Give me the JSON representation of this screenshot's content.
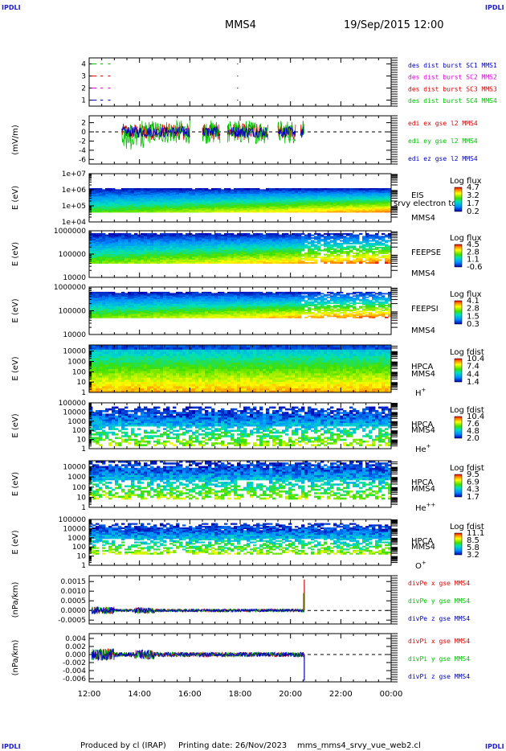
{
  "header": {
    "logo_left_top": "IPDLI",
    "logo_right_top": "IPDLI",
    "logo_left_bottom": "IPDLI",
    "logo_right_bottom": "IPDLI",
    "spacecraft": "MMS4",
    "date_time": "19/Sep/2015 12:00"
  },
  "footer": {
    "produced_by": "Produced by cl (IRAP)",
    "printing_date": "Printing date: 26/Nov/2023",
    "file": "mms_mms4_srvy_vue_web2.cl"
  },
  "colors": {
    "red": "#e00000",
    "green": "#00c000",
    "blue": "#0000c0",
    "magenta": "#e000e0"
  },
  "chart_data": {
    "type": "multi-panel time series and spectrograms",
    "x_ticks": [
      "12:00",
      "14:00",
      "16:00",
      "18:00",
      "20:00",
      "22:00",
      "00:00"
    ],
    "x_range_hours": [
      12,
      24
    ],
    "panels": [
      {
        "id": "burst",
        "type": "line",
        "ylabel": "",
        "yticks": [
          "4",
          "3",
          "2",
          "1"
        ],
        "ylim": [
          0.5,
          4.5
        ],
        "legend": [
          {
            "label": "des dist burst SC1 MMS1",
            "color": "#0000c0"
          },
          {
            "label": "des dist burst SC2 MMS2",
            "color": "#e000e0"
          },
          {
            "label": "des dist burst SC3 MMS3",
            "color": "#e00000"
          },
          {
            "label": "des dist burst SC4 MMS4",
            "color": "#00c000"
          }
        ],
        "series": [
          {
            "level": 4,
            "color": "#00c000",
            "segments": [
              [
                12.1,
                12.3
              ],
              [
                12.45,
                12.55
              ],
              [
                12.75,
                12.85
              ]
            ]
          },
          {
            "level": 3,
            "color": "#e00000",
            "segments": [
              [
                12.1,
                12.3
              ],
              [
                12.45,
                12.55
              ],
              [
                12.75,
                12.85
              ]
            ]
          },
          {
            "level": 2,
            "color": "#e000e0",
            "segments": [
              [
                12.1,
                12.3
              ],
              [
                12.45,
                12.55
              ],
              [
                12.75,
                12.85
              ]
            ]
          },
          {
            "level": 1,
            "color": "#0000c0",
            "segments": [
              [
                12.1,
                12.3
              ],
              [
                12.45,
                12.55
              ],
              [
                12.75,
                12.85
              ]
            ]
          }
        ],
        "dots_at_hour": 17.9
      },
      {
        "id": "edi",
        "type": "line",
        "ylabel": "(mV/m)",
        "yticks": [
          "2",
          "0",
          "-2",
          "-4",
          "-6"
        ],
        "ylim": [
          -7,
          3.5
        ],
        "legend": [
          {
            "label": "edi ex gse l2 MMS4",
            "color": "#e00000"
          },
          {
            "label": "edi ey gse l2 MMS4",
            "color": "#00c000"
          },
          {
            "label": "edi ez gse l2 MMS4",
            "color": "#0000c0"
          }
        ],
        "active_intervals": [
          [
            13.3,
            16.0
          ],
          [
            16.5,
            17.2
          ],
          [
            17.5,
            19.1
          ],
          [
            19.5,
            20.2
          ],
          [
            20.4,
            20.55
          ]
        ]
      },
      {
        "id": "eis",
        "type": "heatmap",
        "ylabel": "E (eV)",
        "yticks": [
          "1e+07",
          "1e+06",
          "1e+05",
          "1e+04"
        ],
        "ylim_log10": [
          4,
          7
        ],
        "band_log10": [
          4.6,
          6.1
        ],
        "labels": [
          "EIS",
          "srvy electron to",
          "MMS4"
        ],
        "colorbar": {
          "title": "Log flux",
          "ticks": [
            "4.7",
            "3.2",
            "1.7",
            "0.2"
          ],
          "range": [
            0.2,
            4.7
          ]
        }
      },
      {
        "id": "feepse",
        "type": "heatmap",
        "ylabel": "E (eV)",
        "yticks": [
          "1000000",
          "100000",
          "10000"
        ],
        "ylim_log10": [
          4,
          6
        ],
        "band_log10": [
          4.6,
          5.9
        ],
        "labels": [
          "FEEPSE",
          "MMS4"
        ],
        "colorbar": {
          "title": "Log flux",
          "ticks": [
            "4.5",
            "2.8",
            "1.1",
            "-0.6"
          ],
          "range": [
            -0.6,
            4.5
          ]
        }
      },
      {
        "id": "feepsi",
        "type": "heatmap",
        "ylabel": "E (eV)",
        "yticks": [
          "1000000",
          "100000",
          "10000"
        ],
        "ylim_log10": [
          4,
          6
        ],
        "band_log10": [
          4.7,
          5.8
        ],
        "labels": [
          "FEEPSI",
          "MMS4"
        ],
        "colorbar": {
          "title": "Log flux",
          "ticks": [
            "4.1",
            "2.8",
            "1.5",
            "0.3"
          ],
          "range": [
            0.3,
            4.1
          ]
        }
      },
      {
        "id": "hpca_h",
        "type": "heatmap",
        "ylabel": "E (eV)",
        "yticks": [
          "10000",
          "1000",
          "100",
          "10",
          "1"
        ],
        "ylim_log10": [
          0,
          4.6
        ],
        "band_log10": [
          0,
          4.6
        ],
        "labels": [
          "HPCA",
          "MMS4"
        ],
        "species": {
          "base": "H",
          "sup": "+"
        },
        "colorbar": {
          "title": "Log fdist",
          "ticks": [
            "10.4",
            "7.4",
            "4.4",
            "1.4"
          ],
          "range": [
            1.4,
            10.4
          ]
        }
      },
      {
        "id": "hpca_he1",
        "type": "heatmap",
        "ylabel": "E (eV)",
        "yticks": [
          "100000",
          "10000",
          "1000",
          "100",
          "10",
          "1"
        ],
        "ylim_log10": [
          0,
          5
        ],
        "band_log10": [
          0.3,
          4.6
        ],
        "labels": [
          "HPCA",
          "MMS4"
        ],
        "species": {
          "base": "He",
          "sup": "+"
        },
        "colorbar": {
          "title": "Log fdist",
          "ticks": [
            "10.4",
            "7.6",
            "4.8",
            "2.0"
          ],
          "range": [
            2.0,
            10.4
          ]
        }
      },
      {
        "id": "hpca_he2",
        "type": "heatmap",
        "ylabel": "E (eV)",
        "yticks": [
          "10000",
          "1000",
          "100",
          "10",
          "1"
        ],
        "ylim_log10": [
          0,
          4.6
        ],
        "band_log10": [
          0.8,
          4.6
        ],
        "labels": [
          "HPCA",
          "MMS4"
        ],
        "species": {
          "base": "He",
          "sup": "++"
        },
        "colorbar": {
          "title": "Log fdist",
          "ticks": [
            "9.5",
            "6.9",
            "4.3",
            "1.7"
          ],
          "range": [
            1.7,
            9.5
          ]
        }
      },
      {
        "id": "hpca_o",
        "type": "heatmap",
        "ylabel": "E (eV)",
        "yticks": [
          "100000",
          "10000",
          "1000",
          "100",
          "10",
          "1"
        ],
        "ylim_log10": [
          0,
          5
        ],
        "band_log10": [
          1.2,
          4.6
        ],
        "labels": [
          "HPCA",
          "MMS4"
        ],
        "species": {
          "base": "O",
          "sup": "+"
        },
        "colorbar": {
          "title": "Log fdist",
          "ticks": [
            "11.1",
            "8.5",
            "5.8",
            "3.2"
          ],
          "range": [
            3.2,
            11.1
          ]
        }
      },
      {
        "id": "divpe",
        "type": "line",
        "ylabel": "(nPa/km)",
        "yticks": [
          "0.0015",
          "0.0010",
          "0.0005",
          "0.0000",
          "-0.0005"
        ],
        "ylim": [
          -0.0007,
          0.0018
        ],
        "legend": [
          {
            "label": "divPe x gse MMS4",
            "color": "#e00000"
          },
          {
            "label": "divPe y gse MMS4",
            "color": "#00c000"
          },
          {
            "label": "divPe z gse MMS4",
            "color": "#0000c0"
          }
        ],
        "data_end_hour": 20.55,
        "spike": {
          "hour": 20.55,
          "x_peak": 0.0016,
          "y_peak": 0.0009
        }
      },
      {
        "id": "divpi",
        "type": "line",
        "ylabel": "(nPa/km)",
        "yticks": [
          "0.004",
          "0.002",
          "0.000",
          "-0.002",
          "-0.004",
          "-0.006"
        ],
        "ylim": [
          -0.0068,
          0.0052
        ],
        "legend": [
          {
            "label": "divPi x gse MMS4",
            "color": "#e00000"
          },
          {
            "label": "divPi y gse MMS4",
            "color": "#00c000"
          },
          {
            "label": "divPi z gse MMS4",
            "color": "#0000c0"
          }
        ],
        "data_end_hour": 20.55,
        "spike": {
          "hour": 20.55,
          "z_min": -0.0065
        }
      }
    ]
  }
}
